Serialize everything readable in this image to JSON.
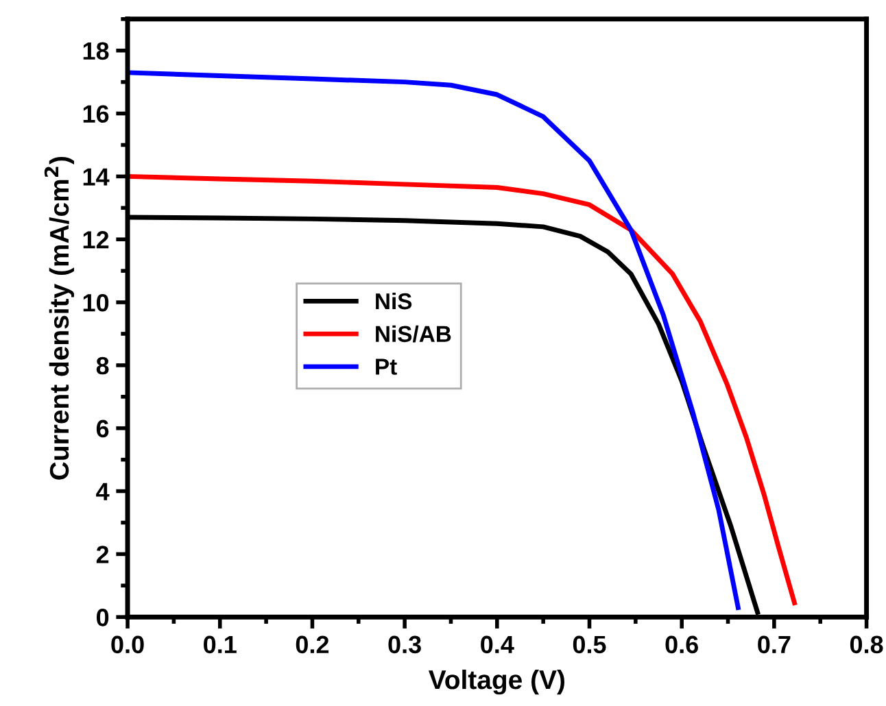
{
  "chart_data": {
    "type": "line",
    "xlabel": "Voltage (V)",
    "ylabel": "Current density (mA/cm$^{2}$)",
    "xlim": [
      0,
      0.8
    ],
    "xticks": [
      {
        "value": 0,
        "label": "0.0"
      },
      0.1,
      0.2,
      0.3,
      0.4,
      0.5,
      0.6,
      0.7,
      0.8
    ],
    "ylim": [
      0,
      19
    ],
    "yticks": [
      0,
      2,
      4,
      6,
      8,
      10,
      12,
      14,
      16,
      18
    ],
    "grid": false,
    "legend": "center",
    "marker": "none",
    "line_style": "solid",
    "series": [
      {
        "name": "NiS",
        "color": "#000000",
        "x": [
          0,
          0.1,
          0.2,
          0.3,
          0.4,
          0.45,
          0.49,
          0.52,
          0.545,
          0.575,
          0.6,
          0.624,
          0.653,
          0.682
        ],
        "values": [
          12.7,
          12.68,
          12.65,
          12.6,
          12.5,
          12.4,
          12.1,
          11.6,
          10.9,
          9.3,
          7.5,
          5.35,
          2.9,
          0.15
        ]
      },
      {
        "name": "NiS/AB",
        "color": "#ff0000",
        "x": [
          0,
          0.1,
          0.2,
          0.3,
          0.4,
          0.45,
          0.5,
          0.545,
          0.59,
          0.62,
          0.649,
          0.67,
          0.689,
          0.705,
          0.722
        ],
        "values": [
          14.0,
          13.92,
          13.85,
          13.75,
          13.65,
          13.45,
          13.1,
          12.3,
          10.9,
          9.4,
          7.4,
          5.7,
          3.9,
          2.2,
          0.45
        ]
      },
      {
        "name": "Pt",
        "color": "#0000ff",
        "x": [
          0,
          0.1,
          0.2,
          0.3,
          0.35,
          0.4,
          0.45,
          0.5,
          0.545,
          0.58,
          0.612,
          0.64,
          0.661
        ],
        "values": [
          17.3,
          17.2,
          17.1,
          17.0,
          16.9,
          16.6,
          15.9,
          14.5,
          12.3,
          9.6,
          6.5,
          3.4,
          0.3
        ]
      }
    ]
  }
}
